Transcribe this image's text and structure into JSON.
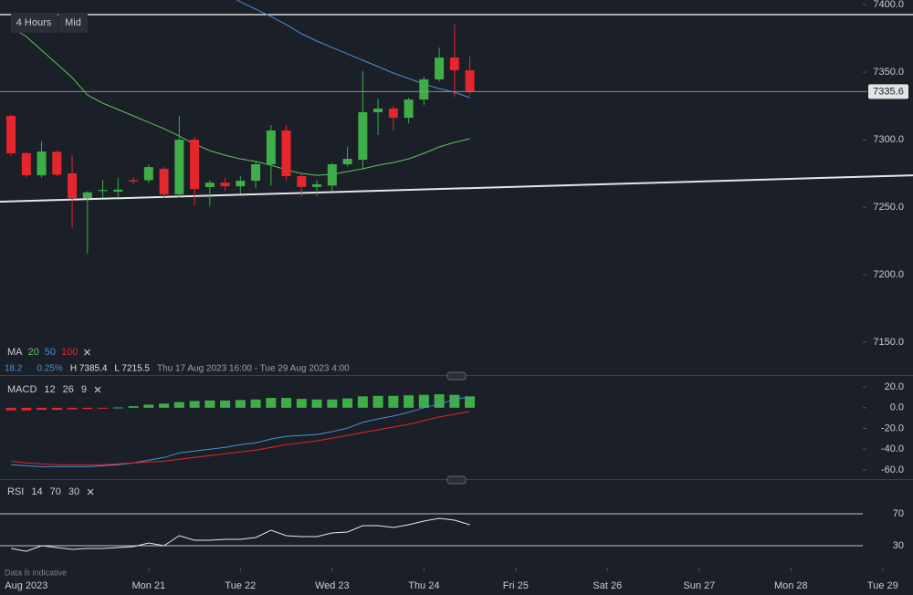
{
  "toolbar": {
    "interval": "4 Hours",
    "price": "Mid"
  },
  "note": "Data is indicative",
  "chart_data": [
    {
      "type": "candlestick",
      "legend_title": "MA",
      "info": [
        {
          "text": "18.2",
          "color": "#4a90d9"
        },
        {
          "text": "0.25%",
          "color": "#4a90d9"
        },
        {
          "text": "H 7385.4",
          "color": "#e0e0e0"
        },
        {
          "text": "L 7215.5",
          "color": "#e0e0e0"
        },
        {
          "text": "Thu 17 Aug 2023 16:00 - Tue 29 Aug 2023 4:00",
          "color": "#9a9ea8"
        }
      ],
      "x": [
        0,
        1,
        2,
        3,
        4,
        5,
        6,
        7,
        8,
        9,
        10,
        11,
        12,
        13,
        14,
        15,
        16,
        17,
        18,
        19,
        20,
        21,
        22,
        23,
        24,
        25,
        26,
        27,
        28,
        29,
        30
      ],
      "open": [
        7317.6,
        7290,
        7273.6,
        7291,
        7275,
        7256.8,
        7262,
        7261.5,
        7270,
        7270,
        7278.4,
        7259.5,
        7300,
        7264.9,
        7268.2,
        7265.5,
        7269.6,
        7281.8,
        7306.8,
        7273,
        7265,
        7266,
        7281.8,
        7285.1,
        7320.3,
        7323,
        7316.2,
        7329.7,
        7344.6,
        7360.8,
        7351.4
      ],
      "high": [
        7318.5,
        7291,
        7298.6,
        7292,
        7288.5,
        7262,
        7270,
        7271.6,
        7272,
        7281.8,
        7280,
        7317.6,
        7302,
        7270,
        7272,
        7273,
        7284,
        7310.8,
        7310.8,
        7274,
        7270,
        7283,
        7295,
        7350.7,
        7330.4,
        7325,
        7331,
        7346.6,
        7368.2,
        7385.4,
        7361.5
      ],
      "low": [
        7288,
        7272,
        7272,
        7273,
        7234.5,
        7215.5,
        7257,
        7257,
        7267,
        7268,
        7257,
        7257,
        7251.4,
        7251,
        7262,
        7260,
        7264,
        7266,
        7270,
        7258,
        7258,
        7262,
        7280,
        7278,
        7303.4,
        7306.8,
        7312,
        7325.7,
        7343,
        7331.8,
        7333
      ],
      "close": [
        7289.9,
        7273.6,
        7291.2,
        7274,
        7256.8,
        7261,
        7262.8,
        7263,
        7269,
        7279.7,
        7259.5,
        7300,
        7263.5,
        7268.2,
        7265.5,
        7269.6,
        7281.8,
        7306.8,
        7273,
        7265,
        7267,
        7281.8,
        7285.8,
        7320.3,
        7323,
        7316.2,
        7329.7,
        7344.6,
        7360.8,
        7351.4,
        7335.6
      ],
      "up_color": "#3fae49",
      "down_color": "#e5262d",
      "ma": [
        {
          "name": "20",
          "color": "#5fc45f",
          "values": [
            7383.1,
            7376.4,
            7366.2,
            7356.1,
            7345.9,
            7333.1,
            7327.0,
            7322.3,
            7317.6,
            7312.8,
            7308.1,
            7302.7,
            7296.6,
            7291.9,
            7288.5,
            7285.8,
            7283.8,
            7281.1,
            7277.7,
            7275.0,
            7273.6,
            7274.3,
            7276.4,
            7278.4,
            7281.1,
            7283.1,
            7285.8,
            7289.9,
            7294.6,
            7298.0,
            7300.7
          ]
        },
        {
          "name": "50",
          "color": "#4a90d9",
          "values": [
            null,
            null,
            null,
            null,
            null,
            null,
            null,
            null,
            null,
            null,
            null,
            null,
            null,
            null,
            7408.8,
            7402.0,
            7396.6,
            7391.2,
            7385.1,
            7378.4,
            7373.0,
            7368.2,
            7363.5,
            7358.8,
            7354.1,
            7349.3,
            7345.3,
            7341.2,
            7337.8,
            7335.1,
            7331.1
          ]
        },
        {
          "name": "100",
          "color": "#e5262d",
          "values": [
            null,
            null,
            null,
            null,
            null,
            null,
            null,
            null,
            null,
            null,
            null,
            null,
            null,
            null,
            null,
            null,
            null,
            null,
            null,
            null,
            null,
            null,
            null,
            null,
            null,
            null,
            null,
            null,
            null,
            null,
            null
          ]
        }
      ],
      "hline": 7392.6,
      "trendline": {
        "x": [
          -0.72,
          58.98
        ],
        "values": [
          7254.1,
          7273.6
        ]
      },
      "xlim": [
        -0.72,
        58.98
      ],
      "xticks": [
        {
          "value": 1,
          "label": "Aug 2023"
        },
        {
          "value": 9,
          "label": "Mon 21"
        },
        {
          "value": 15,
          "label": "Tue 22"
        },
        {
          "value": 21,
          "label": "Wed 23"
        },
        {
          "value": 27,
          "label": "Thu 24"
        },
        {
          "value": 33,
          "label": "Fri 25"
        },
        {
          "value": 39,
          "label": "Sat 26"
        },
        {
          "value": 45,
          "label": "Sun 27"
        },
        {
          "value": 51,
          "label": "Mon 28"
        },
        {
          "value": 57,
          "label": "Tue 29"
        }
      ],
      "ylim": [
        7126.4,
        7403.4
      ],
      "yticks": [
        {
          "value": 7150,
          "label": "7150.0"
        },
        {
          "value": 7200,
          "label": "7200.0"
        },
        {
          "value": 7250,
          "label": "7250.0"
        },
        {
          "value": 7300,
          "label": "7300.0"
        },
        {
          "value": 7350,
          "label": "7350.0"
        },
        {
          "value": 7400,
          "label": "7400.0"
        }
      ]
    },
    {
      "type": "macd",
      "title": "MACD",
      "params": [
        "12",
        "26",
        "9"
      ],
      "histogram": [
        -2.5,
        -2.5,
        -2,
        -2,
        -1.5,
        -1.2,
        -0.8,
        0.3,
        1.5,
        3,
        4,
        5.5,
        6.5,
        7,
        7,
        7.5,
        8,
        9.5,
        9.5,
        8.5,
        8,
        8,
        9,
        11,
        11.5,
        11.5,
        12,
        12.5,
        13,
        12.5,
        11
      ],
      "up_color": "#3fae49",
      "down_color": "#e5262d",
      "series": [
        {
          "color": "#4a90d9",
          "values": [
            -55.1,
            -56,
            -56.9,
            -56.9,
            -56.9,
            -56.9,
            -56,
            -55.1,
            -53.3,
            -50.7,
            -48,
            -43.6,
            -41.8,
            -40,
            -38.2,
            -35.6,
            -33.8,
            -30.2,
            -27.6,
            -26.7,
            -25.8,
            -23.1,
            -19.6,
            -14.2,
            -10.7,
            -8,
            -4.4,
            0,
            3.6,
            8,
            10.7
          ]
        },
        {
          "color": "#e5262d",
          "values": [
            -51.6,
            -53.3,
            -54.2,
            -55.1,
            -55.1,
            -55.1,
            -55.1,
            -54.2,
            -53.3,
            -52.4,
            -51.6,
            -49.8,
            -48,
            -46.2,
            -44.4,
            -42.7,
            -40.9,
            -38.2,
            -35.6,
            -33.8,
            -32,
            -29.3,
            -26.7,
            -24,
            -21.3,
            -18.7,
            -16,
            -12.4,
            -8.9,
            -6.2,
            -3.6
          ]
        }
      ],
      "ylim": [
        -68.9,
        29.8
      ],
      "yticks": [
        {
          "value": 20,
          "label": "20.0"
        },
        {
          "value": 0,
          "label": "0.0"
        },
        {
          "value": -20,
          "label": "-20.0"
        },
        {
          "value": -40,
          "label": "-40.0"
        },
        {
          "value": -60,
          "label": "-60.0"
        }
      ]
    },
    {
      "type": "rsi",
      "title": "RSI",
      "params": [
        "14",
        "70",
        "30"
      ],
      "color": "#e8e8e8",
      "values": [
        26.6,
        23.1,
        30,
        27.7,
        25.4,
        26.6,
        26.6,
        27.7,
        28.9,
        33.4,
        30,
        42.6,
        36.9,
        36.9,
        38,
        38,
        40.3,
        49.4,
        42.6,
        41.4,
        41.4,
        46,
        47.1,
        55.1,
        55.1,
        52.9,
        56.3,
        60.9,
        64.3,
        62,
        56.3
      ],
      "ylim": [
        2.6,
        111.1
      ],
      "yticks": [
        70,
        30
      ],
      "grid": true
    }
  ]
}
